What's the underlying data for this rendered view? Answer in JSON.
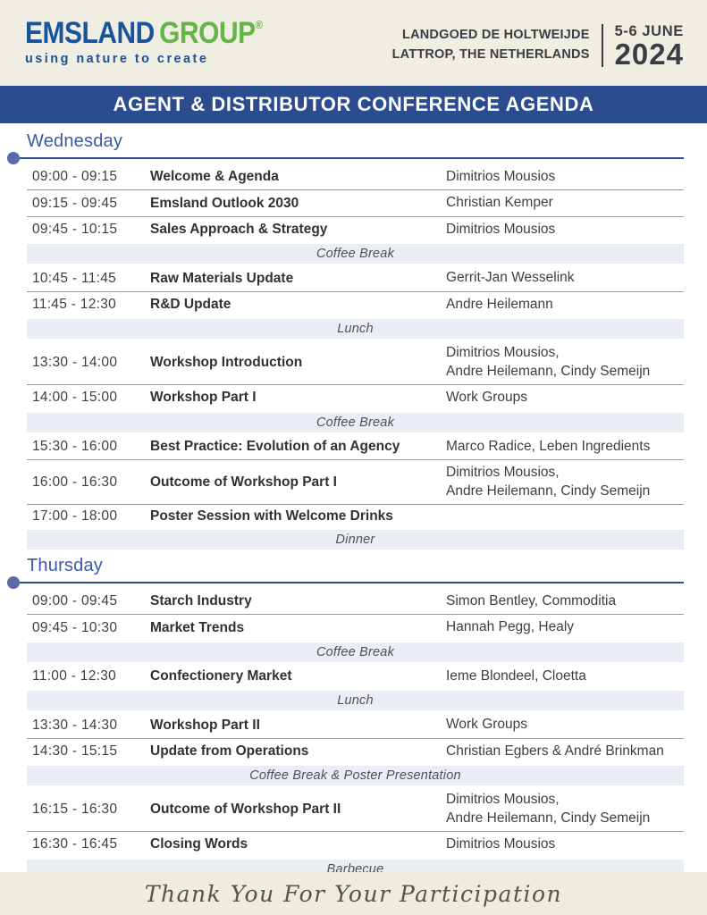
{
  "header": {
    "logo": {
      "brand_primary": "EMSLAND",
      "brand_secondary": "GROUP",
      "registered_mark": "®",
      "tagline": "using nature to create"
    },
    "venue_line1": "LANDGOED DE HOLTWEIJDE",
    "venue_line2": "LATTROP, THE NETHERLANDS",
    "date_range": "5-6 JUNE",
    "date_year": "2024"
  },
  "banner": {
    "title": "AGENT & DISTRIBUTOR CONFERENCE AGENDA"
  },
  "days": [
    {
      "name": "Wednesday",
      "items": [
        {
          "type": "session",
          "time": "09:00 - 09:15",
          "title": "Welcome & Agenda",
          "speakers": [
            "Dimitrios Mousios"
          ]
        },
        {
          "type": "session",
          "time": "09:15 - 09:45",
          "title": "Emsland Outlook 2030",
          "speakers": [
            "Christian Kemper"
          ]
        },
        {
          "type": "session",
          "time": "09:45 - 10:15",
          "title": "Sales Approach & Strategy",
          "speakers": [
            "Dimitrios Mousios"
          ]
        },
        {
          "type": "break",
          "label": "Coffee Break"
        },
        {
          "type": "session",
          "time": "10:45 - 11:45",
          "title": "Raw Materials Update",
          "speakers": [
            "Gerrit-Jan Wesselink"
          ]
        },
        {
          "type": "session",
          "time": "11:45 - 12:30",
          "title": "R&D Update",
          "speakers": [
            "Andre Heilemann"
          ]
        },
        {
          "type": "break",
          "label": "Lunch"
        },
        {
          "type": "session",
          "time": "13:30 - 14:00",
          "title": "Workshop Introduction",
          "speakers": [
            "Dimitrios Mousios,",
            "Andre Heilemann, Cindy Semeijn"
          ]
        },
        {
          "type": "session",
          "time": "14:00 - 15:00",
          "title": "Workshop Part I",
          "speakers": [
            "Work Groups"
          ]
        },
        {
          "type": "break",
          "label": "Coffee Break"
        },
        {
          "type": "session",
          "time": "15:30 - 16:00",
          "title": "Best Practice: Evolution of an Agency",
          "speakers": [
            "Marco Radice, Leben Ingredients"
          ]
        },
        {
          "type": "session",
          "time": "16:00 - 16:30",
          "title": "Outcome of Workshop Part I",
          "speakers": [
            "Dimitrios Mousios,",
            "Andre Heilemann, Cindy Semeijn"
          ]
        },
        {
          "type": "session",
          "time": "17:00 - 18:00",
          "title": "Poster Session with Welcome Drinks",
          "speakers": []
        },
        {
          "type": "break",
          "label": "Dinner"
        }
      ]
    },
    {
      "name": "Thursday",
      "items": [
        {
          "type": "session",
          "time": "09:00 - 09:45",
          "title": "Starch Industry",
          "speakers": [
            "Simon Bentley, Commoditia"
          ]
        },
        {
          "type": "session",
          "time": "09:45 - 10:30",
          "title": "Market Trends",
          "speakers": [
            "Hannah Pegg, Healy"
          ]
        },
        {
          "type": "break",
          "label": "Coffee Break"
        },
        {
          "type": "session",
          "time": "11:00 - 12:30",
          "title": "Confectionery Market",
          "speakers": [
            "Ieme Blondeel, Cloetta"
          ]
        },
        {
          "type": "break",
          "label": "Lunch"
        },
        {
          "type": "session",
          "time": "13:30 - 14:30",
          "title": "Workshop Part II",
          "speakers": [
            "Work Groups"
          ]
        },
        {
          "type": "session",
          "time": "14:30 - 15:15",
          "title": "Update from Operations",
          "speakers": [
            "Christian Egbers & André Brinkman"
          ]
        },
        {
          "type": "break",
          "label": "Coffee Break & Poster Presentation"
        },
        {
          "type": "session",
          "time": "16:15 - 16:30",
          "title": "Outcome of Workshop Part II",
          "speakers": [
            "Dimitrios Mousios,",
            "Andre Heilemann, Cindy Semeijn"
          ]
        },
        {
          "type": "session",
          "time": "16:30 - 16:45",
          "title": "Closing Words",
          "speakers": [
            "Dimitrios Mousios"
          ]
        },
        {
          "type": "break",
          "label": "Barbecue"
        }
      ]
    }
  ],
  "footer": {
    "message": "Thank You For Your Participation"
  },
  "colors": {
    "banner_blue": "#2b4d8f",
    "heading_blue": "#3a5aa4",
    "day_dot": "#5c6aa8",
    "logo_blue": "#17549c",
    "logo_green": "#64b446",
    "break_band": "#ebedf4",
    "paper_beige": "#f0ede2",
    "footer_beige": "#efebdd",
    "text_dark": "#3a3e44"
  }
}
